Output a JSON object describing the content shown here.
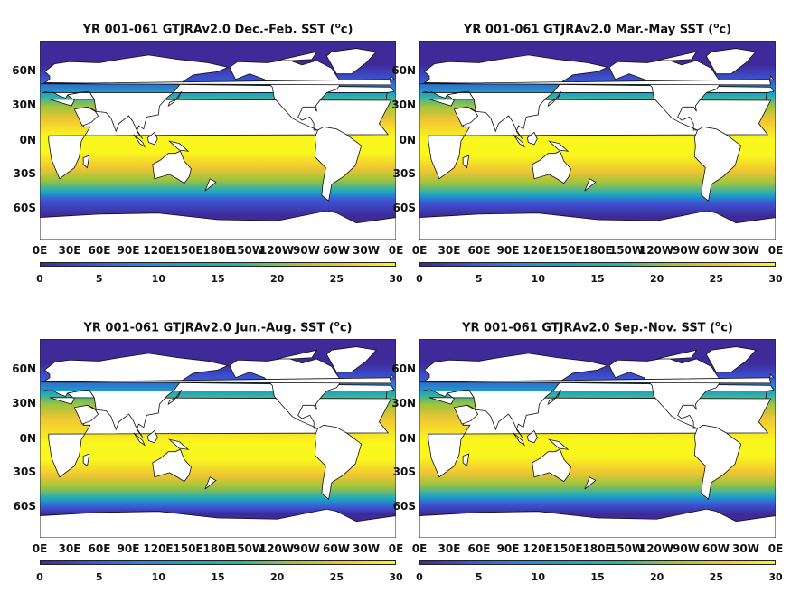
{
  "panels": [
    {
      "title_prefix": "YR 001-061 GTJRAv2.0 Dec.-Feb. SST (",
      "title_sup": "o",
      "title_suffix": "c)",
      "season": "DJF"
    },
    {
      "title_prefix": "YR 001-061 GTJRAv2.0 Mar.-May SST (",
      "title_sup": "o",
      "title_suffix": "c)",
      "season": "MAM"
    },
    {
      "title_prefix": "YR 001-061 GTJRAv2.0 Jun.-Aug. SST (",
      "title_sup": "o",
      "title_suffix": "c)",
      "season": "JJA"
    },
    {
      "title_prefix": "YR 001-061 GTJRAv2.0 Sep.-Nov. SST (",
      "title_sup": "o",
      "title_suffix": "c)",
      "season": "SON"
    }
  ],
  "lat_labels": [
    "60N",
    "30N",
    "0N",
    "30S",
    "60S"
  ],
  "lon_labels": [
    "0E",
    "30E",
    "60E",
    "90E",
    "120E",
    "150E",
    "180E",
    "150W",
    "120W",
    "90W",
    "60W",
    "30W",
    "0E"
  ],
  "colorbar": {
    "ticks": [
      "0",
      "5",
      "10",
      "15",
      "20",
      "25",
      "30"
    ],
    "range": [
      0,
      30
    ],
    "colors": [
      "#3e2a99",
      "#3b57d6",
      "#2b86e0",
      "#1aa7c4",
      "#30b98d",
      "#9ec43c",
      "#f1c534",
      "#f9f71e"
    ]
  }
}
